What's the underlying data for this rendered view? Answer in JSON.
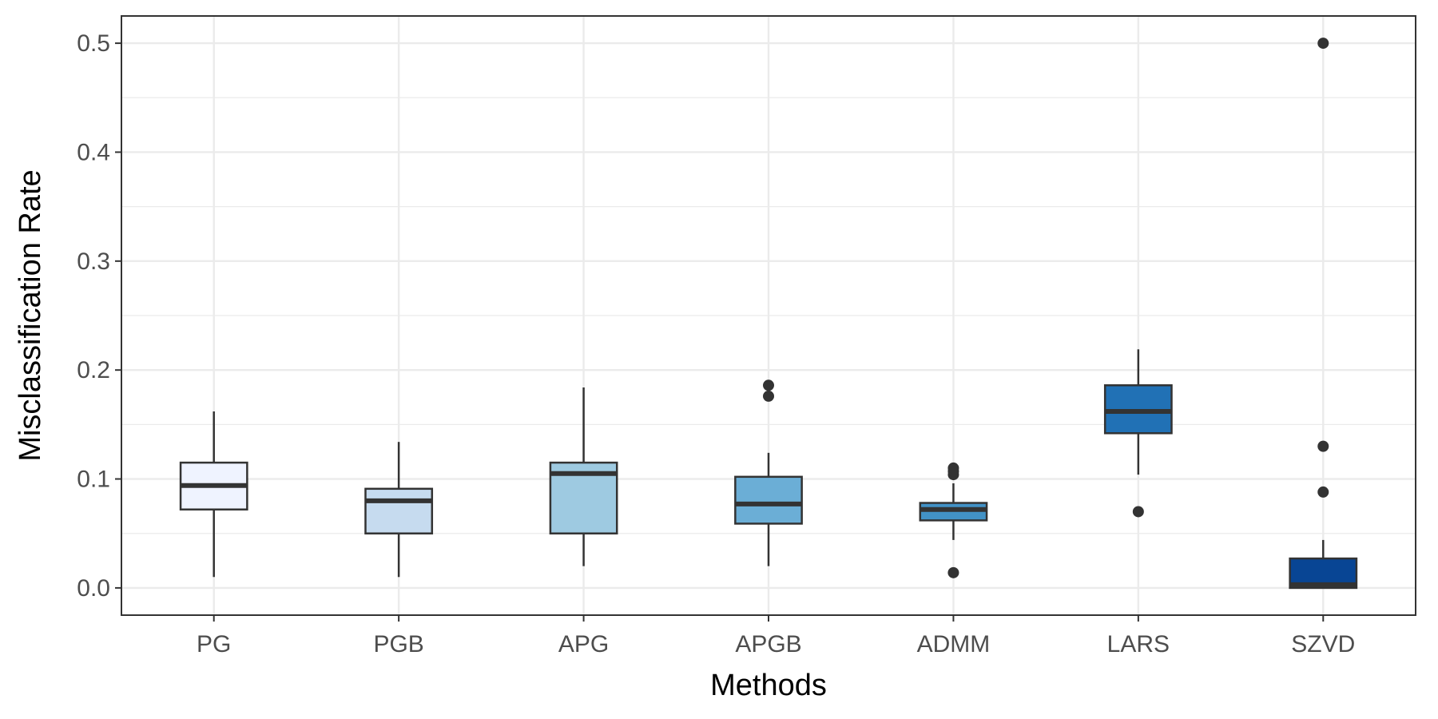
{
  "chart_data": {
    "type": "boxplot",
    "xlabel": "Methods",
    "ylabel": "Misclassification Rate",
    "ylim": [
      -0.025,
      0.525
    ],
    "yticks": [
      0.0,
      0.1,
      0.2,
      0.3,
      0.4,
      0.5
    ],
    "ytick_labels": [
      "0.0",
      "0.1",
      "0.2",
      "0.3",
      "0.4",
      "0.5"
    ],
    "grid": true,
    "categories": [
      "PG",
      "PGB",
      "APG",
      "APGB",
      "ADMM",
      "LARS",
      "SZVD"
    ],
    "boxes": [
      {
        "name": "PG",
        "fill": "#eff3ff",
        "whisker_low": 0.01,
        "q1": 0.072,
        "median": 0.094,
        "q3": 0.115,
        "whisker_high": 0.162,
        "outliers": []
      },
      {
        "name": "PGB",
        "fill": "#c6dbef",
        "whisker_low": 0.01,
        "q1": 0.05,
        "median": 0.08,
        "q3": 0.091,
        "whisker_high": 0.134,
        "outliers": []
      },
      {
        "name": "APG",
        "fill": "#9ecae1",
        "whisker_low": 0.02,
        "q1": 0.05,
        "median": 0.105,
        "q3": 0.115,
        "whisker_high": 0.184,
        "outliers": []
      },
      {
        "name": "APGB",
        "fill": "#6baed6",
        "whisker_low": 0.02,
        "q1": 0.059,
        "median": 0.077,
        "q3": 0.102,
        "whisker_high": 0.124,
        "outliers": [
          0.176,
          0.186
        ]
      },
      {
        "name": "ADMM",
        "fill": "#4292c6",
        "whisker_low": 0.044,
        "q1": 0.062,
        "median": 0.072,
        "q3": 0.078,
        "whisker_high": 0.096,
        "outliers": [
          0.014,
          0.104,
          0.107,
          0.11
        ]
      },
      {
        "name": "LARS",
        "fill": "#2171b5",
        "whisker_low": 0.104,
        "q1": 0.142,
        "median": 0.162,
        "q3": 0.186,
        "whisker_high": 0.219,
        "outliers": [
          0.07
        ]
      },
      {
        "name": "SZVD",
        "fill": "#084594",
        "whisker_low": 0.0,
        "q1": 0.0,
        "median": 0.003,
        "q3": 0.027,
        "whisker_high": 0.044,
        "outliers": [
          0.088,
          0.13,
          0.5
        ]
      }
    ]
  }
}
